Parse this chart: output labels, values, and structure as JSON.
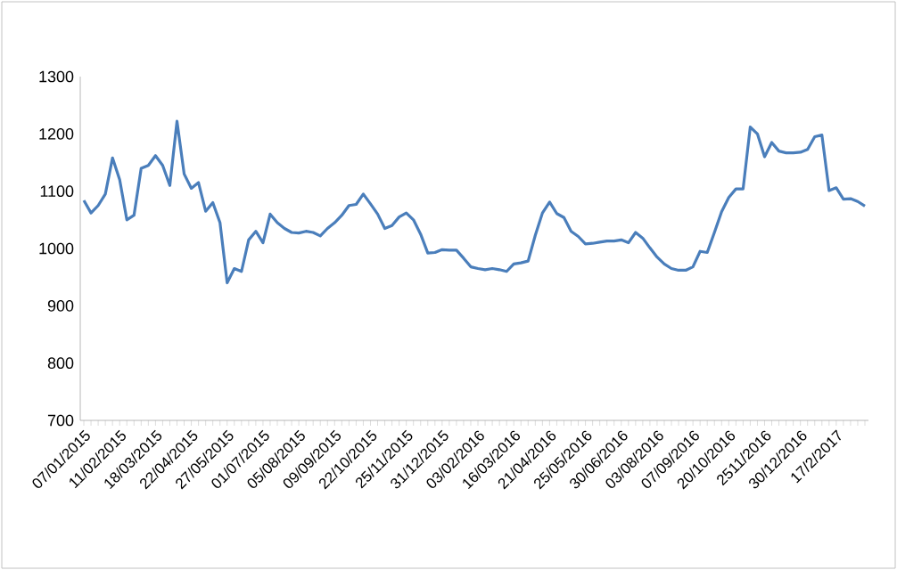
{
  "chart_data": {
    "type": "line",
    "color": "#4a7ebb",
    "marker": "none",
    "line_style": "solid",
    "grid": false,
    "ylim": [
      700,
      1300
    ],
    "yticks": [
      700,
      800,
      900,
      1000,
      1100,
      1200,
      1300
    ],
    "categories": [
      "07/01/2015",
      null,
      null,
      null,
      null,
      "11/02/2015",
      null,
      null,
      null,
      null,
      "18/03/2015",
      null,
      null,
      null,
      null,
      "22/04/2015",
      null,
      null,
      null,
      null,
      "27/05/2015",
      null,
      null,
      null,
      null,
      "01/07/2015",
      null,
      null,
      null,
      null,
      "05/08/2015",
      null,
      null,
      null,
      null,
      "09/09/2015",
      null,
      null,
      null,
      null,
      "22/10/2015",
      null,
      null,
      null,
      null,
      "25/11/2015",
      null,
      null,
      null,
      null,
      "31/12/2015",
      null,
      null,
      null,
      null,
      "03/02/2016",
      null,
      null,
      null,
      null,
      "16/03/2016",
      null,
      null,
      null,
      null,
      "21/04/2016",
      null,
      null,
      null,
      null,
      "25/05/2016",
      null,
      null,
      null,
      null,
      "30/06/2016",
      null,
      null,
      null,
      null,
      "03/08/2016",
      null,
      null,
      null,
      null,
      "07/09/2016",
      null,
      null,
      null,
      null,
      "20/10/2016",
      null,
      null,
      null,
      null,
      "2511/2016",
      null,
      null,
      null,
      null,
      "30/12/2016",
      null,
      null,
      null,
      null,
      "17/2/2017",
      null,
      null,
      null,
      null
    ],
    "values": [
      1084,
      1062,
      1075,
      1095,
      1158,
      1120,
      1050,
      1058,
      1140,
      1145,
      1162,
      1145,
      1110,
      1222,
      1130,
      1105,
      1115,
      1065,
      1080,
      1045,
      940,
      965,
      960,
      1015,
      1030,
      1010,
      1060,
      1045,
      1035,
      1028,
      1027,
      1030,
      1028,
      1022,
      1035,
      1045,
      1058,
      1075,
      1077,
      1095,
      1078,
      1060,
      1035,
      1040,
      1055,
      1062,
      1050,
      1025,
      992,
      993,
      998,
      997,
      997,
      983,
      968,
      965,
      963,
      965,
      963,
      960,
      973,
      975,
      978,
      1023,
      1062,
      1081,
      1061,
      1054,
      1030,
      1021,
      1008,
      1009,
      1011,
      1013,
      1013,
      1015,
      1010,
      1028,
      1018,
      1001,
      985,
      973,
      965,
      962,
      962,
      968,
      995,
      993,
      1028,
      1064,
      1089,
      1104,
      1104,
      1212,
      1200,
      1160,
      1185,
      1170,
      1167,
      1167,
      1168,
      1173,
      1195,
      1198,
      1101,
      1106,
      1086,
      1087,
      1082,
      1074
    ]
  }
}
